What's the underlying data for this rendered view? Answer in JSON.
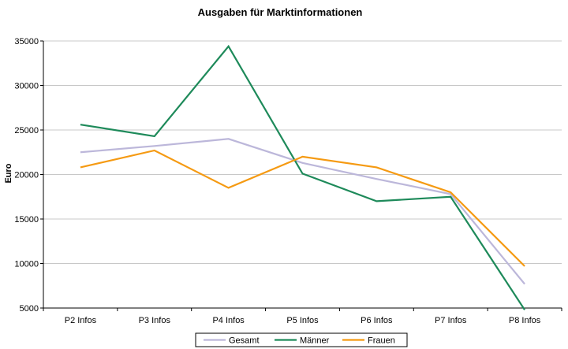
{
  "chart_data": {
    "type": "line",
    "title": "Ausgaben für Marktinformationen",
    "xlabel": "",
    "ylabel": "Euro",
    "categories": [
      "P2 Infos",
      "P3 Infos",
      "P4 Infos",
      "P5 Infos",
      "P6 Infos",
      "P7 Infos",
      "P8 Infos"
    ],
    "ylim": [
      5000,
      35000
    ],
    "yticks": [
      "5000",
      "10000",
      "15000",
      "20000",
      "25000",
      "30000",
      "35000"
    ],
    "grid": "horizontal",
    "legend_position": "bottom",
    "series": [
      {
        "name": "Gesamt",
        "color": "#bcb7da",
        "values": [
          22500,
          23200,
          24000,
          21300,
          19500,
          17800,
          7700
        ]
      },
      {
        "name": "Männer",
        "color": "#1e8a5a",
        "values": [
          25600,
          24300,
          34400,
          20100,
          17000,
          17500,
          4800
        ]
      },
      {
        "name": "Frauen",
        "color": "#f59a12",
        "values": [
          20800,
          22700,
          18500,
          22000,
          20800,
          18000,
          9700
        ]
      }
    ]
  }
}
